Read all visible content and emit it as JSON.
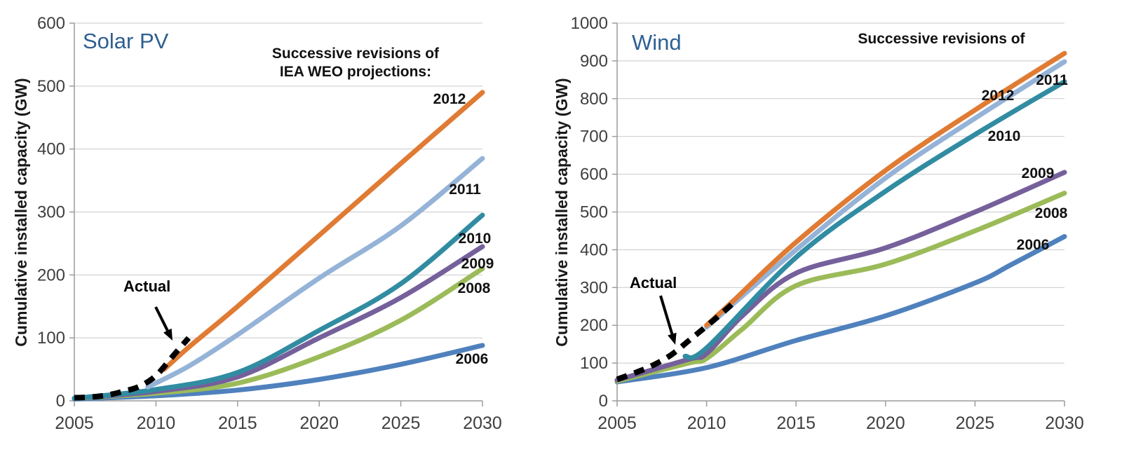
{
  "page": {
    "background": "#ffffff"
  },
  "colors": {
    "title_blue": "#2E5F92",
    "gridline": "#c9c9c9",
    "axis": "#9c9c9c",
    "tick_text": "#3f3f3f",
    "label_text": "#111111"
  },
  "chart_data": [
    {
      "type": "line",
      "title": "Solar PV",
      "ylabel": "Cumulative installed capacity (GW)",
      "annotation_line1": "Successive revisions of",
      "annotation_line2": "IEA WEO projections:",
      "actual_label": "Actual",
      "legend_position": "end-of-line labels",
      "grid": "horizontal only",
      "xlim": [
        2005,
        2030
      ],
      "ylim": [
        0,
        600
      ],
      "x_ticks": [
        2005,
        2010,
        2015,
        2020,
        2025,
        2030
      ],
      "y_ticks": [
        0,
        100,
        200,
        300,
        400,
        500,
        600
      ],
      "series": [
        {
          "name": "2006",
          "color": "#4F81BD",
          "x": [
            2005,
            2010,
            2015,
            2020,
            2025,
            2030
          ],
          "values": [
            3,
            8,
            17,
            34,
            58,
            88
          ]
        },
        {
          "name": "2008",
          "color": "#9BBB59",
          "x": [
            2005,
            2010,
            2015,
            2020,
            2025,
            2030
          ],
          "values": [
            4,
            12,
            28,
            70,
            128,
            210
          ]
        },
        {
          "name": "2009",
          "color": "#75609B",
          "x": [
            2005,
            2010,
            2015,
            2020,
            2025,
            2030
          ],
          "values": [
            4,
            15,
            38,
            100,
            164,
            245
          ]
        },
        {
          "name": "2010",
          "color": "#318CA2",
          "x": [
            2005,
            2010,
            2015,
            2020,
            2025,
            2030
          ],
          "values": [
            4,
            18,
            45,
            112,
            186,
            295
          ]
        },
        {
          "name": "2011",
          "color": "#95B3D7",
          "x": [
            2009.5,
            2012,
            2015,
            2020,
            2025,
            2030
          ],
          "values": [
            22,
            55,
            105,
            195,
            278,
            385
          ]
        },
        {
          "name": "2012",
          "color": "#E07B34",
          "x": [
            2010.5,
            2012,
            2015,
            2020,
            2025,
            2030
          ],
          "values": [
            50,
            85,
            150,
            263,
            377,
            490
          ]
        }
      ],
      "actual": {
        "name": "Actual",
        "color": "#000000",
        "dashed": true,
        "x": [
          2005,
          2006,
          2007,
          2008,
          2009,
          2010,
          2011,
          2012
        ],
        "values": [
          5,
          6,
          9,
          15,
          23,
          40,
          70,
          100
        ]
      }
    },
    {
      "type": "line",
      "title": "Wind",
      "ylabel": "Cumulative installed capacity (GW)",
      "annotation_line1": "Successive revisions of",
      "annotation_line2": "",
      "actual_label": "Actual",
      "legend_position": "end-of-line labels",
      "grid": "horizontal only",
      "xlim": [
        2005,
        2030
      ],
      "ylim": [
        0,
        1000
      ],
      "x_ticks": [
        2005,
        2010,
        2015,
        2020,
        2025,
        2030
      ],
      "y_ticks": [
        0,
        100,
        200,
        300,
        400,
        500,
        600,
        700,
        800,
        900,
        1000
      ],
      "series": [
        {
          "name": "2006",
          "color": "#4F81BD",
          "x": [
            2005,
            2010,
            2015,
            2020,
            2025,
            2027,
            2030
          ],
          "values": [
            50,
            88,
            160,
            225,
            312,
            360,
            435
          ]
        },
        {
          "name": "2008",
          "color": "#9BBB59",
          "x": [
            2005,
            2009,
            2010,
            2012,
            2015,
            2020,
            2025,
            2030
          ],
          "values": [
            52,
            100,
            112,
            190,
            305,
            362,
            450,
            550
          ]
        },
        {
          "name": "2009",
          "color": "#75609B",
          "x": [
            2005,
            2009,
            2010,
            2012,
            2015,
            2020,
            2025,
            2030
          ],
          "values": [
            55,
            110,
            125,
            225,
            338,
            405,
            500,
            605
          ]
        },
        {
          "name": "2010",
          "color": "#318CA2",
          "x": [
            2008.8,
            2010,
            2015,
            2020,
            2025,
            2030
          ],
          "values": [
            118,
            140,
            380,
            555,
            705,
            845
          ]
        },
        {
          "name": "2011",
          "color": "#95B3D7",
          "x": [
            2010,
            2015,
            2020,
            2025,
            2030
          ],
          "values": [
            195,
            400,
            590,
            748,
            898
          ]
        },
        {
          "name": "2012",
          "color": "#E07B34",
          "x": [
            2010,
            2011.5,
            2015,
            2020,
            2025,
            2030
          ],
          "values": [
            200,
            265,
            420,
            610,
            770,
            920
          ]
        }
      ],
      "actual": {
        "name": "Actual",
        "color": "#000000",
        "dashed": true,
        "x": [
          2005,
          2006,
          2007,
          2008,
          2009,
          2010,
          2011,
          2011.7
        ],
        "values": [
          57,
          74,
          94,
          121,
          159,
          198,
          238,
          268
        ]
      }
    }
  ]
}
